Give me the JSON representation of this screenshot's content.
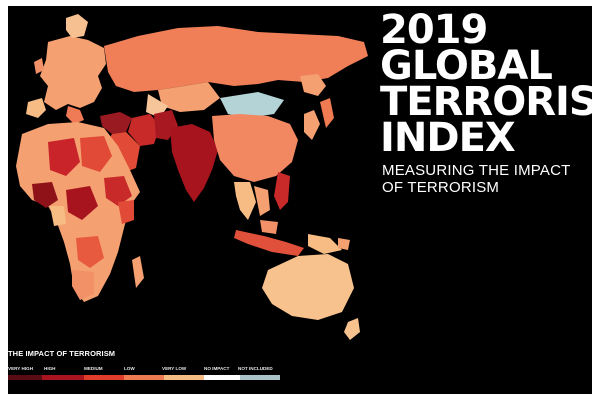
{
  "title_lines": [
    "2019",
    "GLOBAL",
    "TERRORISM",
    "INDEX"
  ],
  "subtitle_lines": [
    "MEASURING THE IMPACT",
    "OF TERRORISM"
  ],
  "legend": {
    "title": "THE IMPACT OF TERRORISM",
    "categories": [
      "VERY HIGH",
      "HIGH",
      "MEDIUM",
      "LOW",
      "VERY LOW",
      "NO IMPACT",
      "NOT INCLUDED"
    ],
    "colors": [
      "#5a0c14",
      "#a8141e",
      "#e03c2c",
      "#f07a52",
      "#f7bc84",
      "#ffffff",
      "#a9c3c9"
    ]
  },
  "colors": {
    "background": "#000000",
    "text": "#ffffff"
  }
}
